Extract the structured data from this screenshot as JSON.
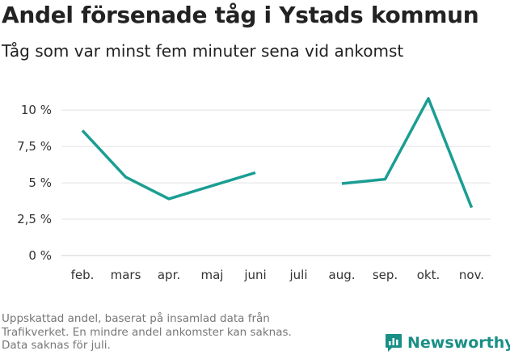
{
  "chart_data": {
    "type": "line",
    "title": "Andel försenade tåg i Ystads kommun",
    "subtitle": "Tåg som var minst fem minuter sena vid ankomst",
    "categories": [
      "feb.",
      "mars",
      "apr.",
      "maj",
      "juni",
      "juli",
      "aug.",
      "sep.",
      "okt.",
      "nov."
    ],
    "series": [
      {
        "values": [
          8.6,
          5.4,
          3.9,
          4.8,
          5.7,
          null,
          4.95,
          5.25,
          10.8,
          3.3
        ]
      }
    ],
    "yticks": [
      "0 %",
      "2,5 %",
      "5 %",
      "7,5 %",
      "10 %"
    ],
    "ytick_values": [
      0,
      2.5,
      5,
      7.5,
      10
    ],
    "ylim": [
      0,
      10.9
    ],
    "grid": true,
    "line_color": "#1a9e92"
  },
  "footnote": [
    "Uppskattad andel, baserat på insamlad data från",
    "Trafikverket. En mindre andel ankomster kan saknas.",
    "Data saknas för juli."
  ],
  "brand": {
    "name": "Newsworthy",
    "icon": "newsworthy-logo-icon",
    "color": "#1a8f86"
  }
}
